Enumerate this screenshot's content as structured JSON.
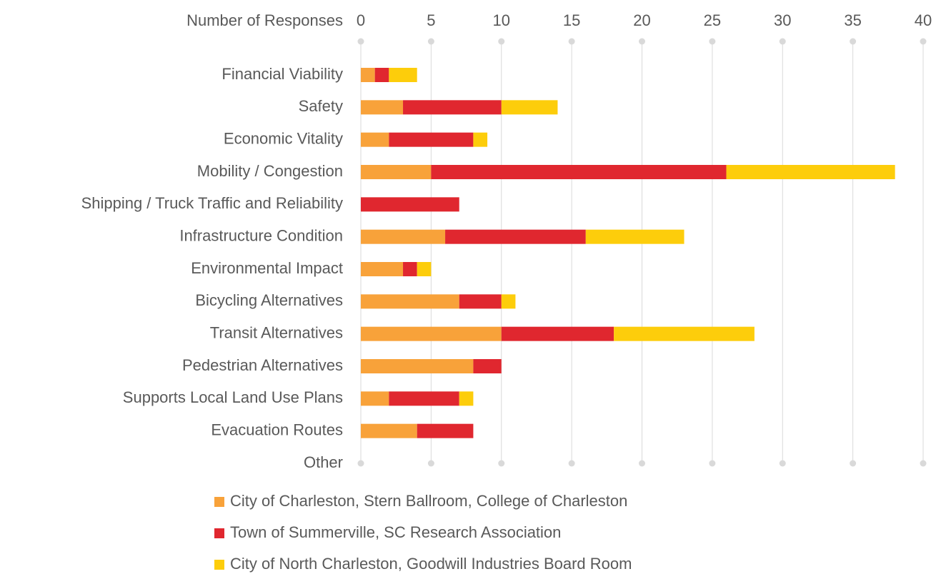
{
  "chart_data": {
    "type": "stacked-bar-horizontal",
    "x_label": "Number of Responses",
    "categories": [
      "Financial Viability",
      "Safety",
      "Economic Vitality",
      "Mobility / Congestion",
      "Shipping / Truck Traffic and Reliability",
      "Infrastructure Condition",
      "Environmental Impact",
      "Bicycling Alternatives",
      "Transit Alternatives",
      "Pedestrian Alternatives",
      "Supports Local Land Use Plans",
      "Evacuation Routes",
      "Other"
    ],
    "series": [
      {
        "name": "City of Charleston, Stern Ballroom, College of Charleston",
        "color": "#f8a23a",
        "values": [
          1,
          3,
          2,
          5,
          0,
          6,
          3,
          7,
          10,
          8,
          2,
          4,
          0
        ]
      },
      {
        "name": "Town of Summerville, SC Research Association",
        "color": "#e0272f",
        "values": [
          1,
          7,
          6,
          21,
          7,
          10,
          1,
          3,
          8,
          2,
          5,
          4,
          0
        ]
      },
      {
        "name": "City of North Charleston, Goodwill Industries Board Room",
        "color": "#fdcd0b",
        "values": [
          2,
          4,
          1,
          12,
          0,
          7,
          1,
          1,
          10,
          0,
          1,
          0,
          0
        ]
      }
    ],
    "xlim": [
      0,
      40
    ],
    "xticks": [
      0,
      5,
      10,
      15,
      20,
      25,
      30,
      35,
      40
    ],
    "grid": true,
    "legend": "bottom"
  }
}
